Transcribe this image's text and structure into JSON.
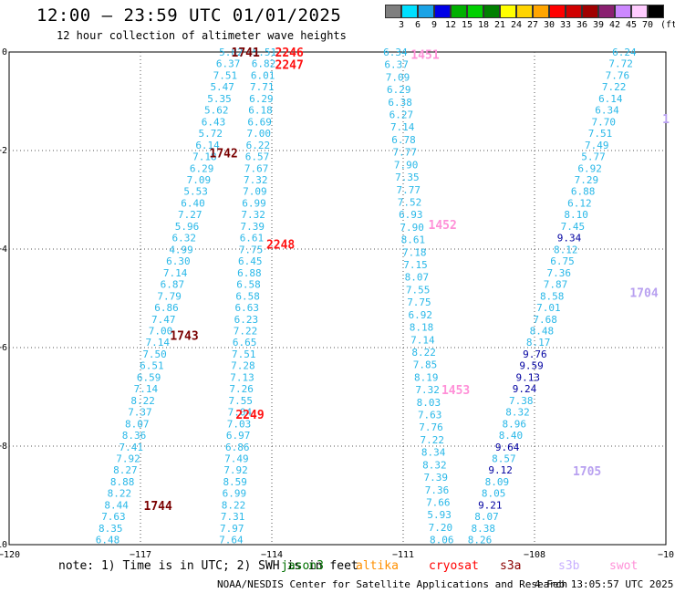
{
  "header": {
    "title": "12:00 – 23:59 UTC 01/01/2025",
    "subtitle": "12 hour collection of altimeter wave heights"
  },
  "legend": {
    "unit_label": "(ft)",
    "levels": [
      "3",
      "6",
      "9",
      "12",
      "15",
      "18",
      "21",
      "24",
      "27",
      "30",
      "33",
      "36",
      "39",
      "42",
      "45",
      "70"
    ],
    "colors": [
      "#7f7f7f",
      "#00e0ff",
      "#1aa3e6",
      "#0000e6",
      "#00b000",
      "#00d000",
      "#008000",
      "#ffff00",
      "#ffd400",
      "#ffa500",
      "#ff0000",
      "#d00000",
      "#a00000",
      "#8a2070",
      "#cc88ff",
      "#ffccff",
      "#000000"
    ]
  },
  "axes": {
    "x_ticks": [
      "−120",
      "−117",
      "−114",
      "−111",
      "−108",
      "−10"
    ],
    "y_ticks": [
      "0",
      "−2",
      "−4",
      "−6",
      "−8",
      "−10"
    ]
  },
  "map_data": {
    "color_key": {
      "cyan": "#2ab8e8",
      "dark": "#7a0000",
      "red": "#ff1010",
      "pink": "#ff90d8",
      "lav": "#b8a0f0",
      "navy": "#0000a0"
    },
    "tracks": [
      {
        "name": "track-1741",
        "start": [
          -114.93,
          0.0
        ],
        "end": [
          -117.75,
          -9.9
        ],
        "values": [
          "5.82",
          "6.37",
          "7.51",
          "5.47",
          "5.35",
          "5.62",
          "6.43",
          "5.72",
          "6.14",
          "7.18",
          "6.29",
          "7.09",
          "5.53",
          "6.40",
          "7.27",
          "5.96",
          "6.32",
          "4.99",
          "6.30",
          "7.14",
          "6.87",
          "7.79",
          "6.86",
          "7.47",
          "7.00",
          "7.14",
          "7.50",
          "6.51",
          "6.59",
          "7.14",
          "8.22",
          "7.37",
          "8.07",
          "8.36",
          "7.41",
          "7.92",
          "8.27",
          "8.88",
          "8.22",
          "8.44",
          "7.63",
          "8.35",
          "6.48"
        ]
      },
      {
        "name": "track-2246",
        "start": [
          -114.17,
          0.0
        ],
        "end": [
          -114.93,
          -9.9
        ],
        "values": [
          "5.51",
          "6.82",
          "6.01",
          "7.71",
          "6.29",
          "6.18",
          "6.69",
          "7.00",
          "6.22",
          "6.57",
          "7.67",
          "7.32",
          "7.09",
          "6.99",
          "7.32",
          "7.39",
          "6.61",
          "7.75",
          "6.45",
          "6.88",
          "6.58",
          "6.58",
          "6.63",
          "6.23",
          "7.22",
          "6.65",
          "7.51",
          "7.28",
          "7.13",
          "7.26",
          "7.55",
          "7.04",
          "7.03",
          "6.97",
          "6.86",
          "7.49",
          "7.92",
          "8.59",
          "6.99",
          "8.22",
          "7.31",
          "7.97",
          "7.64"
        ]
      },
      {
        "name": "track-1451",
        "start": [
          -111.18,
          0.0
        ],
        "end": [
          -110.12,
          -9.9
        ],
        "values": [
          "6.34",
          "6.37",
          "7.09",
          "6.29",
          "6.38",
          "6.27",
          "7.14",
          "6.78",
          "7.77",
          "7.90",
          "7.35",
          "7.77",
          "7.52",
          "6.93",
          "7.90",
          "8.61",
          "7.18",
          "7.15",
          "8.07",
          "7.55",
          "7.75",
          "6.92",
          "8.18",
          "7.14",
          "8.22",
          "7.85",
          "8.19",
          "7.32",
          "8.03",
          "7.63",
          "7.76",
          "7.22",
          "8.34",
          "8.32",
          "7.39",
          "7.36",
          "7.66",
          "5.93",
          "7.20",
          "8.06"
        ]
      },
      {
        "name": "track-1704",
        "start": [
          -105.95,
          0.0
        ],
        "end": [
          -109.25,
          -9.9
        ],
        "colors": {
          "9.34": "navy",
          "9.76": "navy",
          "9.59": "navy",
          "9.13": "navy",
          "9.24": "navy",
          "9.64": "navy",
          "9.12": "navy",
          "9.21": "navy"
        },
        "values": [
          "6.24",
          "7.72",
          "7.76",
          "7.22",
          "6.14",
          "6.34",
          "7.70",
          "7.51",
          "7.49",
          "5.77",
          "6.92",
          "7.29",
          "6.88",
          "6.12",
          "8.10",
          "7.45",
          "9.34",
          "8.12",
          "6.75",
          "7.36",
          "7.87",
          "8.58",
          "7.01",
          "7.68",
          "8.48",
          "8.17",
          "9.76",
          "9.59",
          "9.13",
          "9.24",
          "7.38",
          "8.32",
          "8.96",
          "8.40",
          "9.64",
          "8.57",
          "9.12",
          "8.09",
          "8.05",
          "9.21",
          "8.07",
          "8.38",
          "8.26"
        ]
      }
    ],
    "pass_labels": [
      {
        "text": "1741",
        "lon": -114.6,
        "lat": 0.0,
        "color": "dark"
      },
      {
        "text": "2246",
        "lon": -113.6,
        "lat": 0.0,
        "color": "red"
      },
      {
        "text": "2247",
        "lon": -113.6,
        "lat": -0.25,
        "color": "red"
      },
      {
        "text": "1451",
        "lon": -110.5,
        "lat": -0.05,
        "color": "pink"
      },
      {
        "text": "1742",
        "lon": -115.1,
        "lat": -2.05,
        "color": "dark"
      },
      {
        "text": "1452",
        "lon": -110.1,
        "lat": -3.5,
        "color": "pink"
      },
      {
        "text": "2248",
        "lon": -113.8,
        "lat": -3.9,
        "color": "red"
      },
      {
        "text": "1704",
        "lon": -105.5,
        "lat": -4.88,
        "color": "lav"
      },
      {
        "text": "1743",
        "lon": -116.0,
        "lat": -5.75,
        "color": "dark"
      },
      {
        "text": "1453",
        "lon": -109.8,
        "lat": -6.85,
        "color": "pink"
      },
      {
        "text": "2249",
        "lon": -114.5,
        "lat": -7.35,
        "color": "red"
      },
      {
        "text": "1705",
        "lon": -106.8,
        "lat": -8.5,
        "color": "lav"
      },
      {
        "text": "1744",
        "lon": -116.6,
        "lat": -9.2,
        "color": "dark"
      },
      {
        "text": "1",
        "lon": -105.0,
        "lat": -1.35,
        "color": "lav"
      }
    ]
  },
  "footer": {
    "note_a": "note: 1) Time is in UTC; 2) SWH is in feet",
    "satellites": [
      {
        "name": "jason3",
        "color": "#007000"
      },
      {
        "name": "altika",
        "color": "#ff9000"
      },
      {
        "name": "cryosat",
        "color": "#ff0000"
      },
      {
        "name": "s3a",
        "color": "#8b0000"
      },
      {
        "name": "s3b",
        "color": "#c8b0ff"
      },
      {
        "name": "swot",
        "color": "#ff90d8"
      }
    ],
    "credit": "NOAA/NESDIS Center for Satellite Applications and Research",
    "timestamp": "4 Feb 13:05:57 UTC 2025"
  }
}
